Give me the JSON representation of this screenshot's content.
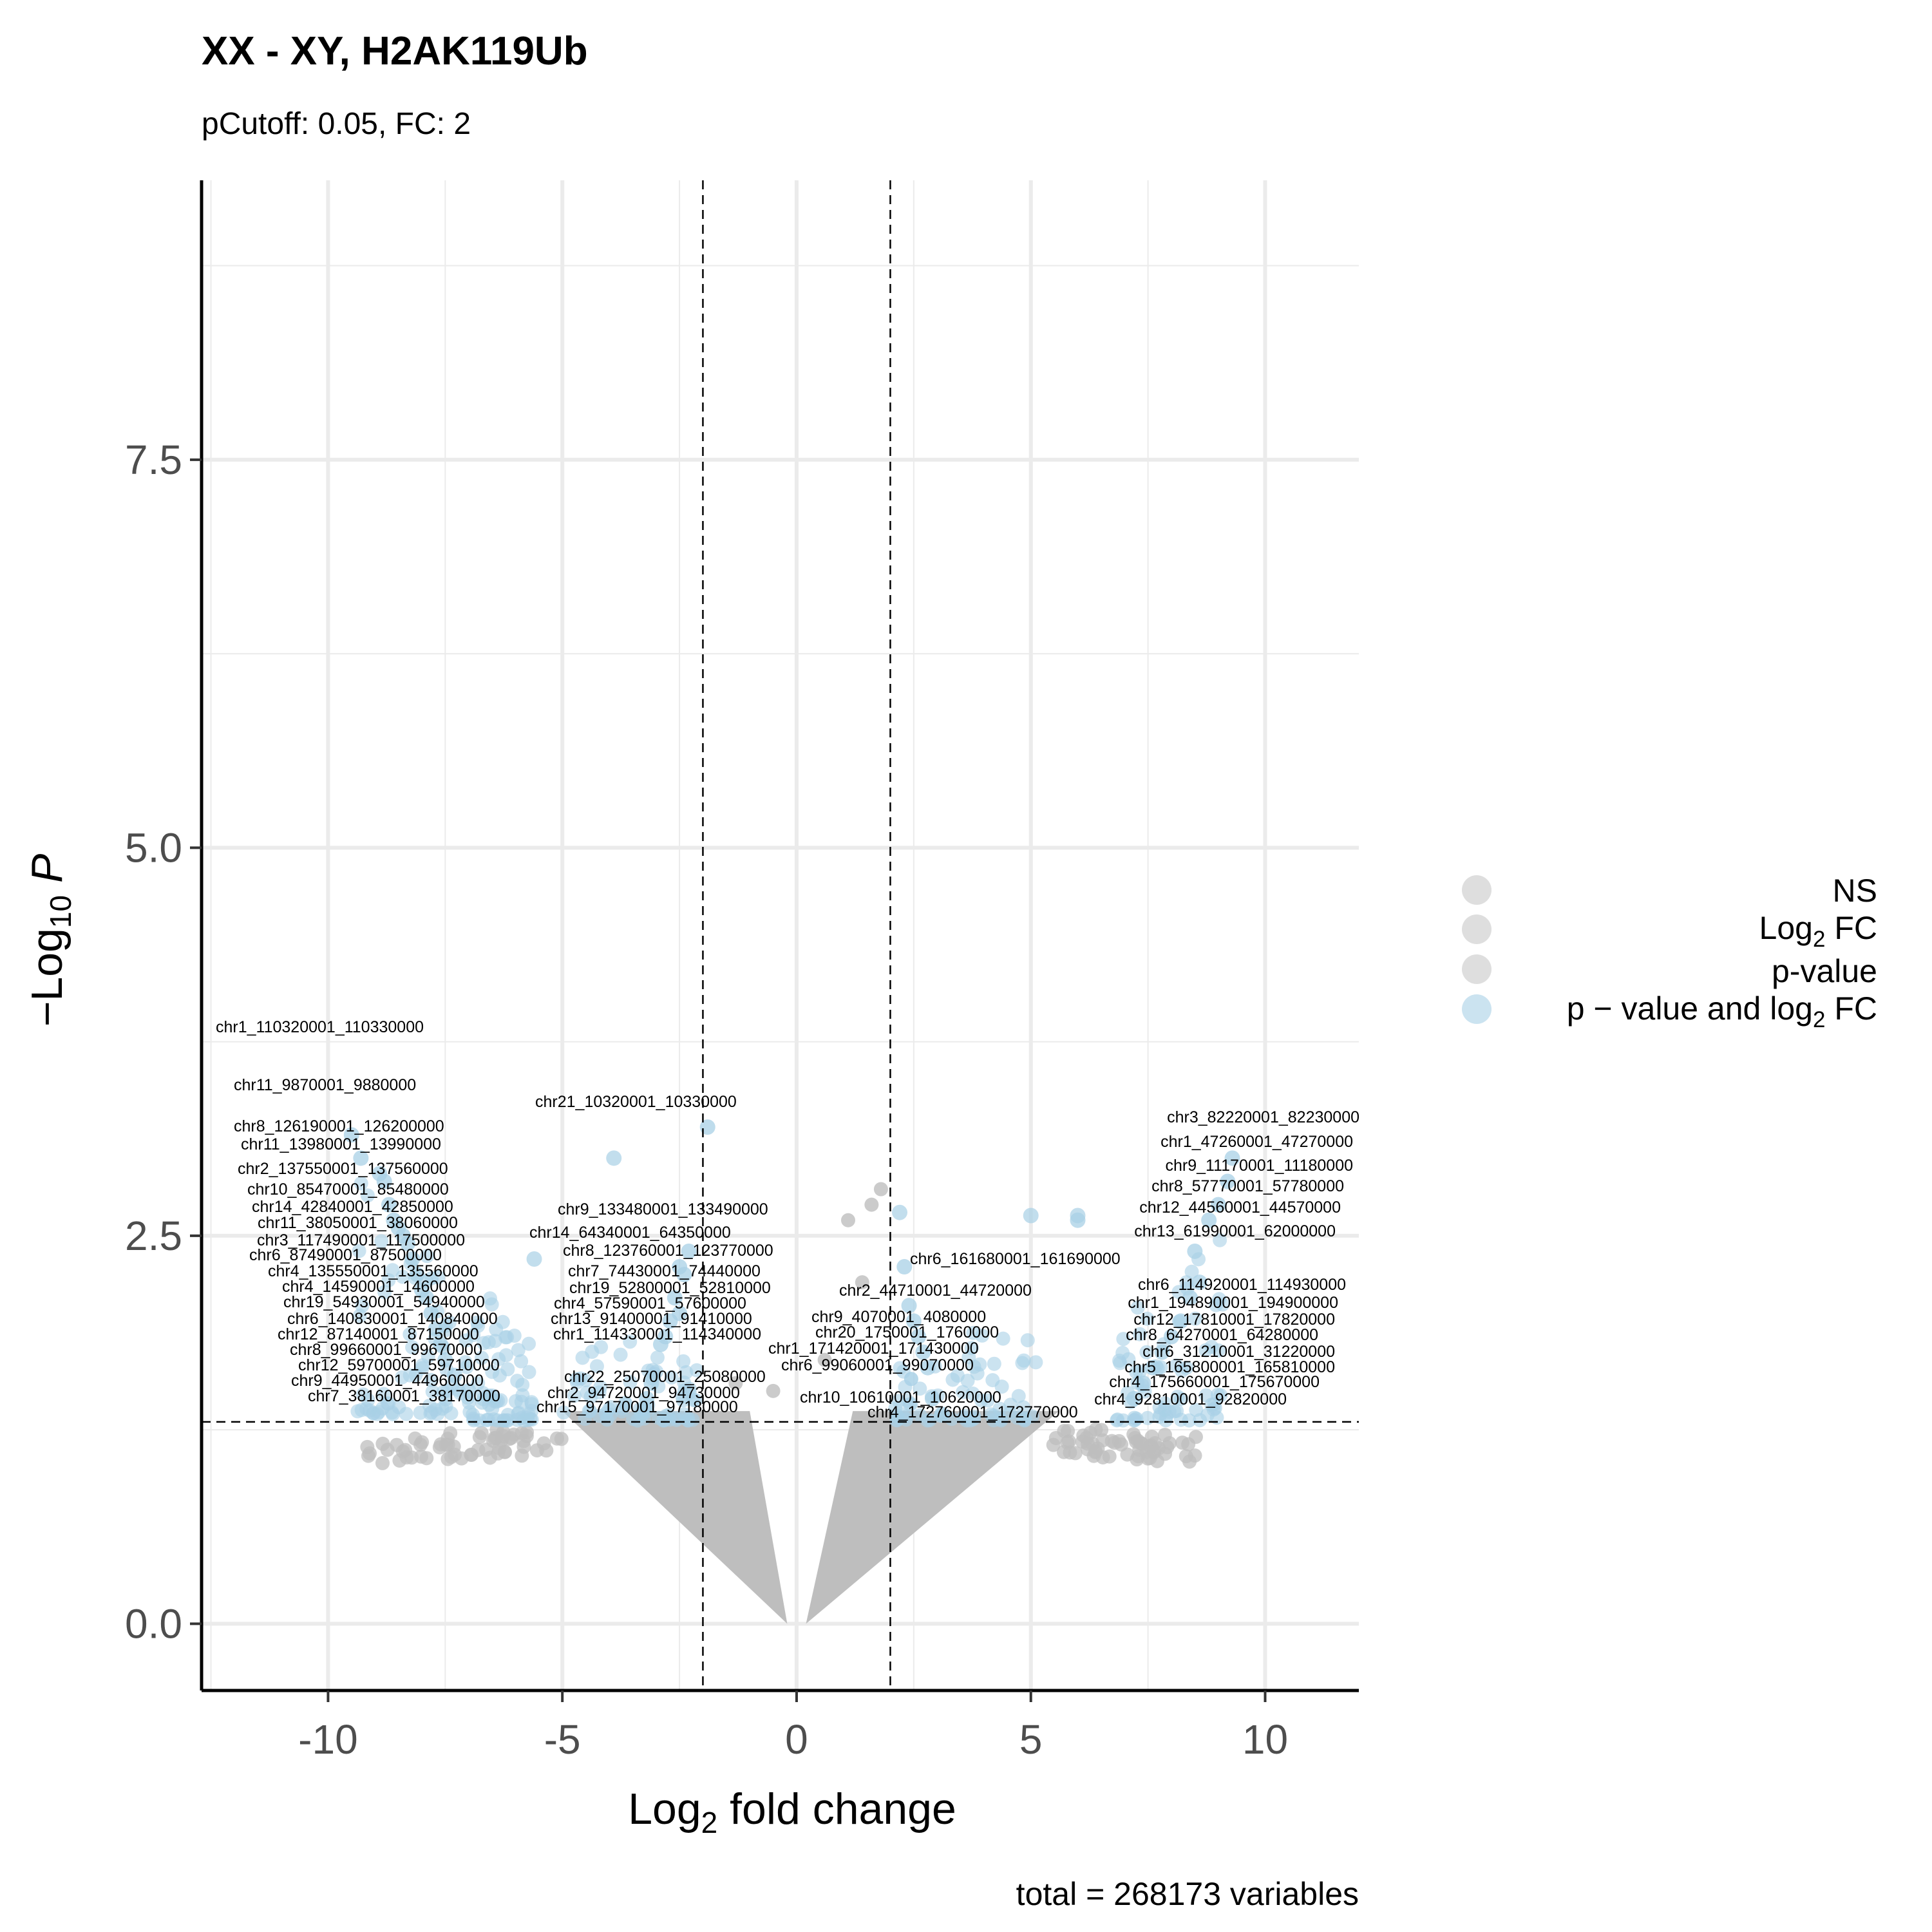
{
  "chart_data": {
    "type": "scatter",
    "title": "XX - XY, H2AK119Ub",
    "subtitle": "pCutoff: 0.05, FC: 2",
    "xlabel": "Log2 fold change",
    "ylabel": "-Log10 P",
    "caption": "total = 268173 variables",
    "xlim": [
      -12.7,
      12
    ],
    "ylim": [
      -0.43,
      9.3
    ],
    "x_ticks": [
      -10,
      -5,
      0,
      5,
      10
    ],
    "x_tick_labels": [
      "-10",
      "-5",
      "0",
      "5",
      "10"
    ],
    "y_ticks": [
      0,
      2.5,
      5,
      7.5
    ],
    "y_tick_labels": [
      "0.0",
      "2.5",
      "5.0",
      "7.5"
    ],
    "grid": true,
    "fc_cutoff": 2,
    "p_cutoff_line": 1.301,
    "legend_position": "right",
    "legend": [
      {
        "label": "NS",
        "color": "#c8c8c8"
      },
      {
        "label": "Log2 FC",
        "color": "#c8c8c8"
      },
      {
        "label": "p-value",
        "color": "#c8c8c8"
      },
      {
        "label": "p − value and log2 FC",
        "color": "#a8d0e6"
      }
    ],
    "colors": {
      "ns": "#bebebe",
      "sig": "#a8d0e6",
      "line": "#000000",
      "grid": "#ebebeb"
    },
    "labeled_points": [
      {
        "label": "chr1_110320001_110330000",
        "x": -9.5,
        "y": 3.15
      },
      {
        "label": "chr11_9870001_9880000",
        "x": -9.3,
        "y": 3.0
      },
      {
        "label": "chr8_126190001_126200000",
        "x": -8.9,
        "y": 2.9
      },
      {
        "label": "chr11_13980001_13990000",
        "x": -8.8,
        "y": 2.85
      },
      {
        "label": "chr2_137550001_137560000",
        "x": -8.7,
        "y": 2.7
      },
      {
        "label": "chr10_85470001_85480000",
        "x": -8.6,
        "y": 2.6
      },
      {
        "label": "chr14_42840001_42850000",
        "x": -8.5,
        "y": 2.55
      },
      {
        "label": "chr11_38050001_38060000",
        "x": -8.4,
        "y": 2.5
      },
      {
        "label": "chr3_117490001_117500000",
        "x": -8.3,
        "y": 2.45
      },
      {
        "label": "chr6_87490001_87500000",
        "x": -8.2,
        "y": 2.35
      },
      {
        "label": "chr4_135550001_135560000",
        "x": -8.1,
        "y": 2.25
      },
      {
        "label": "chr4_14590001_14600000",
        "x": -8.0,
        "y": 2.15
      },
      {
        "label": "chr19_54930001_54940000",
        "x": -7.9,
        "y": 2.1
      },
      {
        "label": "chr6_140830001_140840000",
        "x": -7.8,
        "y": 2.0
      },
      {
        "label": "chr12_87140001_87150000",
        "x": -7.7,
        "y": 1.9
      },
      {
        "label": "chr8_99660001_99670000",
        "x": -7.6,
        "y": 1.8
      },
      {
        "label": "chr12_59700001_59710000",
        "x": -7.5,
        "y": 1.7
      },
      {
        "label": "chr9_44950001_44960000",
        "x": -7.3,
        "y": 1.6
      },
      {
        "label": "chr7_38160001_38170000",
        "x": -7.0,
        "y": 1.5
      },
      {
        "label": "chr21_10320001_10330000",
        "x": -1.9,
        "y": 3.2
      },
      {
        "label": "chr9_133480001_133490000",
        "x": -2.3,
        "y": 2.4
      },
      {
        "label": "chr14_64340001_64350000",
        "x": -2.5,
        "y": 2.3
      },
      {
        "label": "chr8_123760001_123770000",
        "x": -2.4,
        "y": 2.25
      },
      {
        "label": "chr7_74430001_74440000",
        "x": -2.6,
        "y": 2.1
      },
      {
        "label": "chr19_52800001_52810000",
        "x": -2.5,
        "y": 2.0
      },
      {
        "label": "chr4_57590001_57600000",
        "x": -2.7,
        "y": 1.95
      },
      {
        "label": "chr13_91400001_91410000",
        "x": -2.8,
        "y": 1.85
      },
      {
        "label": "chr1_114330001_114340000",
        "x": -2.9,
        "y": 1.8
      },
      {
        "label": "chr22_25070001_25080000",
        "x": -3.1,
        "y": 1.55
      },
      {
        "label": "chr2_94720001_94730000",
        "x": -3.2,
        "y": 1.45
      },
      {
        "label": "chr15_97170001_97180000",
        "x": -3.3,
        "y": 1.35
      },
      {
        "label": "chr3_82220001_82230000",
        "x": 9.3,
        "y": 3.0
      },
      {
        "label": "chr1_47260001_47270000",
        "x": 9.2,
        "y": 2.85
      },
      {
        "label": "chr9_11170001_11180000",
        "x": 9.0,
        "y": 2.7
      },
      {
        "label": "chr8_57770001_57780000",
        "x": 8.8,
        "y": 2.6
      },
      {
        "label": "chr12_44560001_44570000",
        "x": 6.0,
        "y": 2.6
      },
      {
        "label": "chr13_61990001_62000000",
        "x": 8.5,
        "y": 2.4
      },
      {
        "label": "chr6_161680001_161690000",
        "x": 2.3,
        "y": 2.3
      },
      {
        "label": "chr6_114920001_114930000",
        "x": 8.6,
        "y": 2.2
      },
      {
        "label": "chr1_194890001_194900000",
        "x": 8.4,
        "y": 2.1
      },
      {
        "label": "chr2_44710001_44720000",
        "x": 2.4,
        "y": 2.05
      },
      {
        "label": "chr9_4070001_4080000",
        "x": 2.5,
        "y": 1.95
      },
      {
        "label": "chr12_17810001_17820000",
        "x": 8.2,
        "y": 1.95
      },
      {
        "label": "chr20_1750001_1760000",
        "x": 2.6,
        "y": 1.85
      },
      {
        "label": "chr8_64270001_64280000",
        "x": 8.0,
        "y": 1.85
      },
      {
        "label": "chr1_171420001_171430000",
        "x": 2.7,
        "y": 1.75
      },
      {
        "label": "chr6_31210001_31220000",
        "x": 7.8,
        "y": 1.75
      },
      {
        "label": "chr6_99060001_99070000",
        "x": 2.8,
        "y": 1.65
      },
      {
        "label": "chr5_165800001_165810000",
        "x": 7.6,
        "y": 1.65
      },
      {
        "label": "chr4_175660001_175670000",
        "x": 7.4,
        "y": 1.55
      },
      {
        "label": "chr10_10610001_10620000",
        "x": 2.9,
        "y": 1.45
      },
      {
        "label": "chr4_92810001_92820000",
        "x": 7.2,
        "y": 1.45
      },
      {
        "label": "chr4_172760001_172770000",
        "x": 3.1,
        "y": 1.35
      }
    ]
  }
}
